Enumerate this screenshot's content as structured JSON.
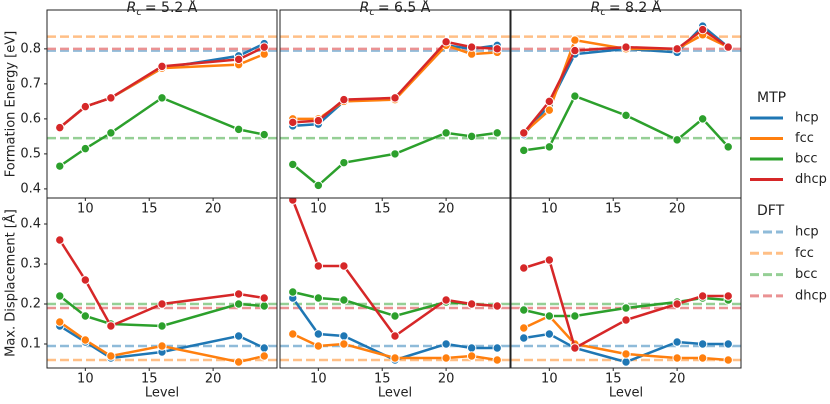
{
  "legend": {
    "mtp_title": "MTP",
    "dft_title": "DFT"
  },
  "chart_data": [
    {
      "type": "line",
      "title": {
        "symbol": "R",
        "subscript": "c",
        "text": "= 5.2 Å"
      },
      "ylabel": "Formation Energy [eV]",
      "x": [
        8,
        10,
        12,
        16,
        22,
        24
      ],
      "xlim": [
        7,
        25
      ],
      "xticks": [
        10,
        15,
        20
      ],
      "ylim": [
        0.374,
        0.911
      ],
      "yticks": [
        0.4,
        0.5,
        0.6,
        0.7,
        0.8
      ],
      "series": [
        {
          "name": "hcp",
          "color": "#1f77b4",
          "values": [
            0.575,
            0.635,
            0.66,
            0.745,
            0.78,
            0.815
          ]
        },
        {
          "name": "fcc",
          "color": "#ff7f0e",
          "values": [
            0.575,
            0.635,
            0.66,
            0.745,
            0.755,
            0.785
          ]
        },
        {
          "name": "bcc",
          "color": "#2ca02c",
          "values": [
            0.465,
            0.515,
            0.56,
            0.66,
            0.57,
            0.555
          ]
        },
        {
          "name": "dhcp",
          "color": "#d62728",
          "values": [
            0.575,
            0.635,
            0.66,
            0.75,
            0.77,
            0.805
          ]
        }
      ],
      "dft": [
        {
          "name": "hcp",
          "color": "#8fbbd9",
          "value": 0.795
        },
        {
          "name": "fcc",
          "color": "#ffbf86",
          "value": 0.835
        },
        {
          "name": "bcc",
          "color": "#95cf95",
          "value": 0.545
        },
        {
          "name": "dhcp",
          "color": "#ea9293",
          "value": 0.8
        }
      ]
    },
    {
      "type": "line",
      "title": {
        "symbol": "R",
        "subscript": "c",
        "text": "= 6.5 Å"
      },
      "x": [
        8,
        10,
        12,
        16,
        20,
        22,
        24
      ],
      "xlim": [
        7,
        25
      ],
      "xticks": [
        10,
        15,
        20
      ],
      "ylim": [
        0.374,
        0.911
      ],
      "series": [
        {
          "name": "hcp",
          "color": "#1f77b4",
          "values": [
            0.58,
            0.585,
            0.65,
            0.66,
            0.81,
            0.8,
            0.81
          ]
        },
        {
          "name": "fcc",
          "color": "#ff7f0e",
          "values": [
            0.6,
            0.6,
            0.65,
            0.655,
            0.81,
            0.785,
            0.79
          ]
        },
        {
          "name": "bcc",
          "color": "#2ca02c",
          "values": [
            0.47,
            0.41,
            0.475,
            0.5,
            0.56,
            0.55,
            0.56
          ]
        },
        {
          "name": "dhcp",
          "color": "#d62728",
          "values": [
            0.59,
            0.595,
            0.655,
            0.66,
            0.82,
            0.805,
            0.8
          ]
        }
      ],
      "dft": [
        {
          "name": "hcp",
          "color": "#8fbbd9",
          "value": 0.795
        },
        {
          "name": "fcc",
          "color": "#ffbf86",
          "value": 0.835
        },
        {
          "name": "bcc",
          "color": "#95cf95",
          "value": 0.545
        },
        {
          "name": "dhcp",
          "color": "#ea9293",
          "value": 0.8
        }
      ]
    },
    {
      "type": "line",
      "title": {
        "symbol": "R",
        "subscript": "c",
        "text": "= 8.2 Å"
      },
      "x": [
        8,
        10,
        12,
        16,
        20,
        22,
        24
      ],
      "xlim": [
        7,
        25
      ],
      "xticks": [
        10,
        15,
        20
      ],
      "ylim": [
        0.374,
        0.911
      ],
      "series": [
        {
          "name": "hcp",
          "color": "#1f77b4",
          "values": [
            0.555,
            0.64,
            0.785,
            0.8,
            0.79,
            0.865,
            0.805
          ]
        },
        {
          "name": "fcc",
          "color": "#ff7f0e",
          "values": [
            0.56,
            0.625,
            0.825,
            0.8,
            0.8,
            0.84,
            0.805
          ]
        },
        {
          "name": "bcc",
          "color": "#2ca02c",
          "values": [
            0.51,
            0.52,
            0.665,
            0.61,
            0.54,
            0.6,
            0.52
          ]
        },
        {
          "name": "dhcp",
          "color": "#d62728",
          "values": [
            0.56,
            0.65,
            0.795,
            0.805,
            0.8,
            0.855,
            0.805
          ]
        }
      ],
      "dft": [
        {
          "name": "hcp",
          "color": "#8fbbd9",
          "value": 0.795
        },
        {
          "name": "fcc",
          "color": "#ffbf86",
          "value": 0.835
        },
        {
          "name": "bcc",
          "color": "#95cf95",
          "value": 0.545
        },
        {
          "name": "dhcp",
          "color": "#ea9293",
          "value": 0.8
        }
      ]
    },
    {
      "type": "line",
      "ylabel": "Max. Displacement [Å]",
      "xlabel": "Level",
      "x": [
        8,
        10,
        12,
        16,
        22,
        24
      ],
      "xlim": [
        7,
        25
      ],
      "xticks": [
        10,
        15,
        20
      ],
      "ylim": [
        0.04,
        0.465
      ],
      "yticks": [
        0.1,
        0.2,
        0.3,
        0.4
      ],
      "series": [
        {
          "name": "hcp",
          "color": "#1f77b4",
          "values": [
            0.145,
            0.105,
            0.065,
            0.08,
            0.12,
            0.09
          ]
        },
        {
          "name": "fcc",
          "color": "#ff7f0e",
          "values": [
            0.155,
            0.11,
            0.07,
            0.095,
            0.055,
            0.07
          ]
        },
        {
          "name": "bcc",
          "color": "#2ca02c",
          "values": [
            0.22,
            0.17,
            0.15,
            0.145,
            0.2,
            0.195
          ]
        },
        {
          "name": "dhcp",
          "color": "#d62728",
          "values": [
            0.36,
            0.26,
            0.145,
            0.2,
            0.225,
            0.215
          ]
        }
      ],
      "dft": [
        {
          "name": "hcp",
          "color": "#8fbbd9",
          "value": 0.095
        },
        {
          "name": "fcc",
          "color": "#ffbf86",
          "value": 0.06
        },
        {
          "name": "bcc",
          "color": "#95cf95",
          "value": 0.2
        },
        {
          "name": "dhcp",
          "color": "#ea9293",
          "value": 0.19
        }
      ]
    },
    {
      "type": "line",
      "xlabel": "Level",
      "x": [
        8,
        10,
        12,
        16,
        20,
        22,
        24
      ],
      "xlim": [
        7,
        25
      ],
      "xticks": [
        10,
        15,
        20
      ],
      "ylim": [
        0.04,
        0.465
      ],
      "series": [
        {
          "name": "hcp",
          "color": "#1f77b4",
          "values": [
            0.215,
            0.125,
            0.12,
            0.06,
            0.1,
            0.09,
            0.09
          ]
        },
        {
          "name": "fcc",
          "color": "#ff7f0e",
          "values": [
            0.125,
            0.095,
            0.1,
            0.065,
            0.065,
            0.07,
            0.06
          ]
        },
        {
          "name": "bcc",
          "color": "#2ca02c",
          "values": [
            0.23,
            0.215,
            0.21,
            0.17,
            0.205,
            0.2,
            0.195
          ]
        },
        {
          "name": "dhcp",
          "color": "#d62728",
          "values": [
            0.46,
            0.295,
            0.295,
            0.12,
            0.21,
            0.2,
            0.195
          ]
        }
      ],
      "dft": [
        {
          "name": "hcp",
          "color": "#8fbbd9",
          "value": 0.095
        },
        {
          "name": "fcc",
          "color": "#ffbf86",
          "value": 0.06
        },
        {
          "name": "bcc",
          "color": "#95cf95",
          "value": 0.2
        },
        {
          "name": "dhcp",
          "color": "#ea9293",
          "value": 0.19
        }
      ]
    },
    {
      "type": "line",
      "xlabel": "Level",
      "x": [
        8,
        10,
        12,
        16,
        20,
        22,
        24
      ],
      "xlim": [
        7,
        25
      ],
      "xticks": [
        10,
        15,
        20
      ],
      "ylim": [
        0.04,
        0.465
      ],
      "series": [
        {
          "name": "hcp",
          "color": "#1f77b4",
          "values": [
            0.115,
            0.125,
            0.09,
            0.055,
            0.105,
            0.1,
            0.1
          ]
        },
        {
          "name": "fcc",
          "color": "#ff7f0e",
          "values": [
            0.14,
            0.17,
            0.1,
            0.075,
            0.065,
            0.065,
            0.06
          ]
        },
        {
          "name": "bcc",
          "color": "#2ca02c",
          "values": [
            0.185,
            0.17,
            0.17,
            0.19,
            0.205,
            0.215,
            0.21
          ]
        },
        {
          "name": "dhcp",
          "color": "#d62728",
          "values": [
            0.29,
            0.31,
            0.09,
            0.16,
            0.2,
            0.22,
            0.22
          ]
        }
      ],
      "dft": [
        {
          "name": "hcp",
          "color": "#8fbbd9",
          "value": 0.095
        },
        {
          "name": "fcc",
          "color": "#ffbf86",
          "value": 0.06
        },
        {
          "name": "bcc",
          "color": "#95cf95",
          "value": 0.2
        },
        {
          "name": "dhcp",
          "color": "#ea9293",
          "value": 0.19
        }
      ]
    }
  ]
}
